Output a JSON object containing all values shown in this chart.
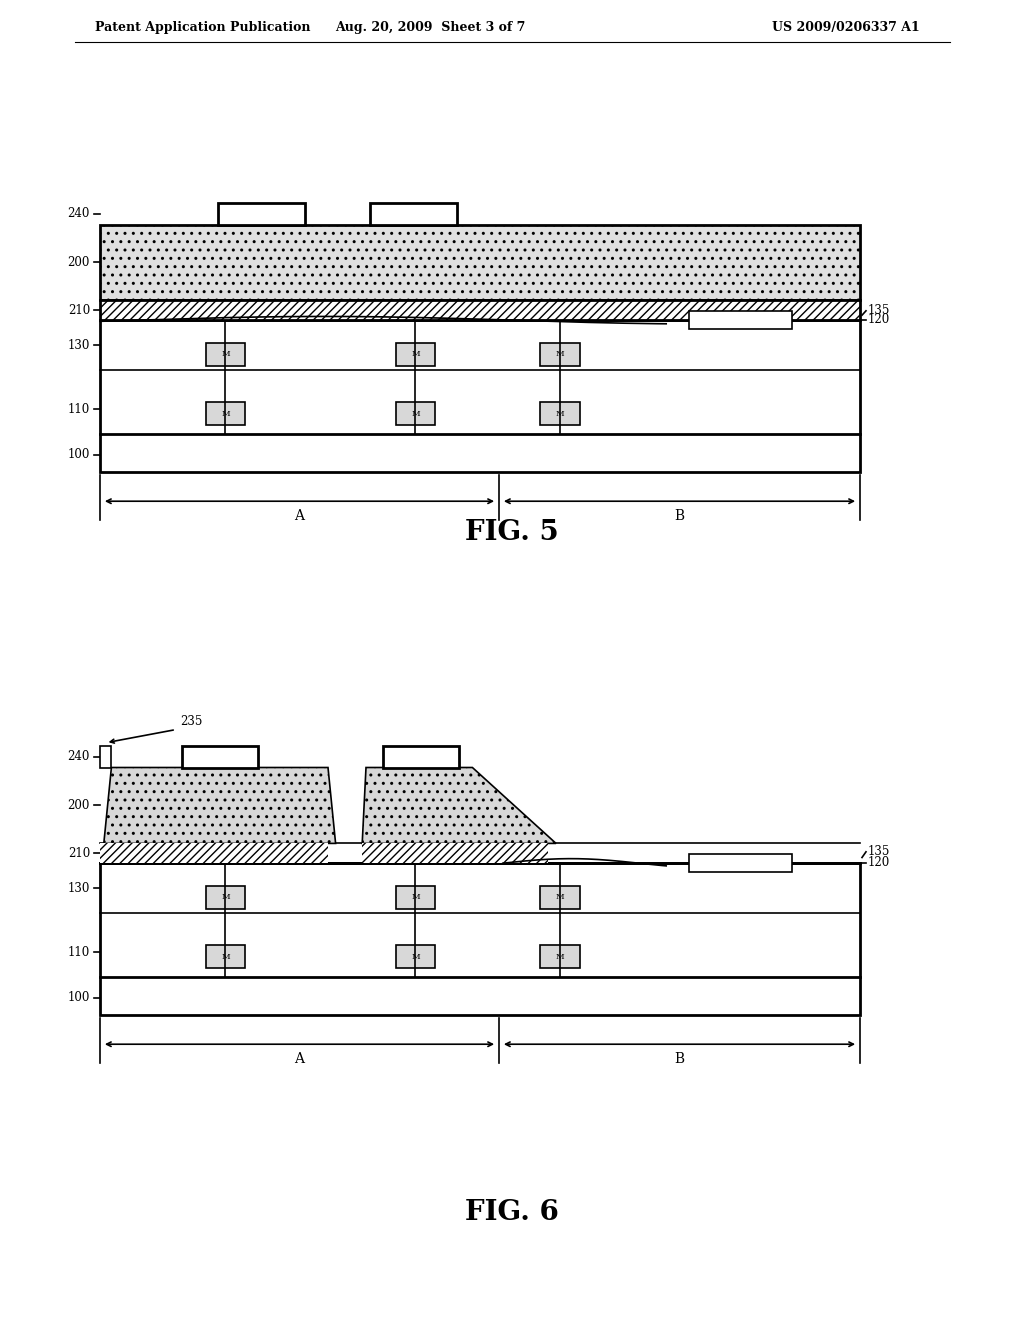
{
  "header_left": "Patent Application Publication",
  "header_mid": "Aug. 20, 2009  Sheet 3 of 7",
  "header_right": "US 2009/0206337 A1",
  "fig5_label": "FIG. 5",
  "fig6_label": "FIG. 6",
  "background": "#ffffff",
  "line_color": "#000000",
  "diag_hatch": "////",
  "dot_hatch": ".."
}
